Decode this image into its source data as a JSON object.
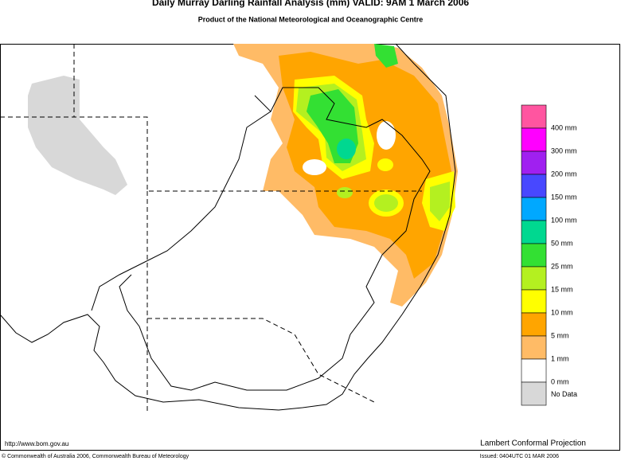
{
  "header": {
    "title": "Daily Murray Darling Rainfall Analysis (mm)  VALID: 9AM  1 March 2006",
    "subtitle": "Product of the National Meteorological and Oceanographic Centre"
  },
  "legend": [
    {
      "label": "400 mm",
      "color": "#ff55a0"
    },
    {
      "label": "300 mm",
      "color": "#ff00ff"
    },
    {
      "label": "200 mm",
      "color": "#a020f0"
    },
    {
      "label": "150 mm",
      "color": "#4848ff"
    },
    {
      "label": "100 mm",
      "color": "#00a8ff"
    },
    {
      "label": "50 mm",
      "color": "#00d890"
    },
    {
      "label": "25 mm",
      "color": "#33e033"
    },
    {
      "label": "15 mm",
      "color": "#b4f020"
    },
    {
      "label": "10 mm",
      "color": "#ffff00"
    },
    {
      "label": "5 mm",
      "color": "#ffa500"
    },
    {
      "label": "1 mm",
      "color": "#ffbb66"
    },
    {
      "label": "0 mm",
      "color": "#ffffff"
    },
    {
      "label": "No Data",
      "color": "#d8d8d8"
    }
  ],
  "footer": {
    "url": "http://www.bom.gov.au",
    "projection": "Lambert Conformal Projection",
    "copyright": "© Commonwealth of Australia 2006, Commonwealth Bureau of Meteorology",
    "issued": "Issued: 0404UTC 01 MAR 2006"
  }
}
